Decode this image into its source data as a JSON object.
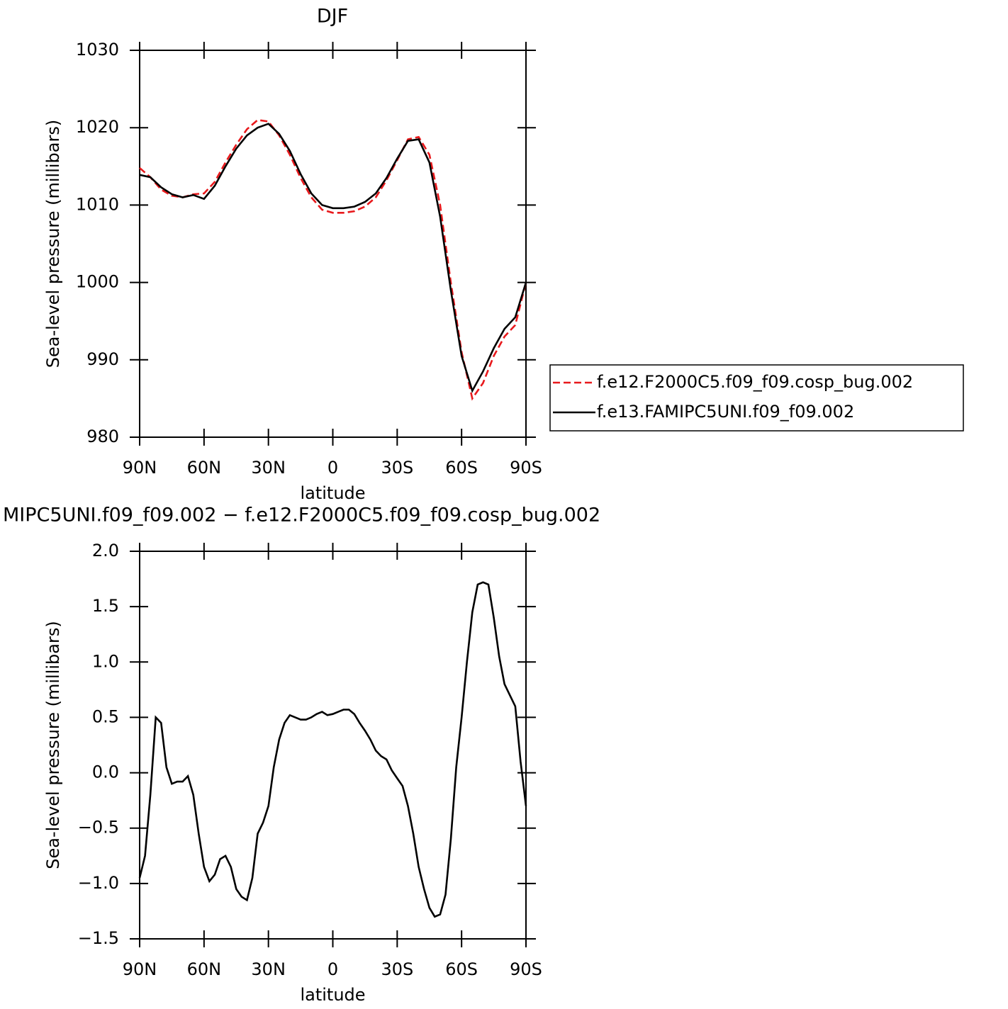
{
  "chart_data": [
    {
      "type": "line",
      "title": "DJF",
      "xlabel": "latitude",
      "ylabel": "Sea-level pressure (millibars)",
      "x": [
        90,
        85,
        80,
        75,
        70,
        65,
        60,
        55,
        50,
        45,
        40,
        35,
        30,
        25,
        20,
        15,
        10,
        5,
        0,
        -5,
        -10,
        -15,
        -20,
        -25,
        -30,
        -35,
        -40,
        -45,
        -50,
        -55,
        -60,
        -65,
        -70,
        -75,
        -80,
        -85,
        -90
      ],
      "series": [
        {
          "name": "f.e12.F2000C5.f09_f09.cosp_bug.002",
          "color": "#e8191c",
          "line_style": "dashed",
          "values": [
            1014.8,
            1013.6,
            1012.0,
            1011.2,
            1011.0,
            1011.4,
            1011.5,
            1013.0,
            1015.5,
            1017.8,
            1019.8,
            1021.0,
            1020.8,
            1019.0,
            1016.5,
            1013.5,
            1011.0,
            1009.4,
            1009.0,
            1009.0,
            1009.2,
            1009.8,
            1011.0,
            1013.2,
            1015.8,
            1018.5,
            1018.8,
            1016.5,
            1010.0,
            1000.0,
            991.0,
            985.0,
            987.0,
            990.5,
            993.0,
            994.5,
            1000.0
          ]
        },
        {
          "name": "f.e13.FAMIPC5UNI.f09_f09.002",
          "color": "#000000",
          "line_style": "solid",
          "values": [
            1013.9,
            1013.6,
            1012.3,
            1011.4,
            1011.0,
            1011.3,
            1010.8,
            1012.5,
            1015.0,
            1017.3,
            1019.0,
            1020.0,
            1020.5,
            1019.2,
            1017.0,
            1014.0,
            1011.5,
            1010.0,
            1009.6,
            1009.6,
            1009.8,
            1010.4,
            1011.5,
            1013.5,
            1016.0,
            1018.3,
            1018.5,
            1015.5,
            1008.5,
            999.0,
            990.5,
            986.0,
            988.5,
            991.5,
            994.0,
            995.5,
            1000.0
          ]
        }
      ],
      "xlim": [
        90,
        -90
      ],
      "xticks": [
        {
          "value": 90,
          "label": "90N"
        },
        {
          "value": 60,
          "label": "60N"
        },
        {
          "value": 30,
          "label": "30N"
        },
        0,
        {
          "value": -30,
          "label": "30S"
        },
        {
          "value": -60,
          "label": "60S"
        },
        {
          "value": -90,
          "label": "90S"
        }
      ],
      "ylim": [
        980,
        1030
      ],
      "yticks": [
        980,
        990,
        1000,
        1010,
        1020,
        1030
      ],
      "legend": "right"
    },
    {
      "type": "line",
      "title": "MIPC5UNI.f09_f09.002 − f.e12.F2000C5.f09_f09.cosp_bug.002",
      "xlabel": "latitude",
      "ylabel": "Sea-level pressure (millibars)",
      "x": [
        90,
        87.5,
        85,
        82.5,
        80,
        77.5,
        75,
        72.5,
        70,
        67.5,
        65,
        62.5,
        60,
        57.5,
        55,
        52.5,
        50,
        47.5,
        45,
        42.5,
        40,
        37.5,
        35,
        32.5,
        30,
        27.5,
        25,
        22.5,
        20,
        17.5,
        15,
        12.5,
        10,
        7.5,
        5,
        2.5,
        0,
        -2.5,
        -5,
        -7.5,
        -10,
        -12.5,
        -15,
        -17.5,
        -20,
        -22.5,
        -25,
        -27.5,
        -30,
        -32.5,
        -35,
        -37.5,
        -40,
        -42.5,
        -45,
        -47.5,
        -50,
        -52.5,
        -55,
        -57.5,
        -60,
        -62.5,
        -65,
        -67.5,
        -70,
        -72.5,
        -75,
        -77.5,
        -80,
        -82.5,
        -85,
        -87.5,
        -90
      ],
      "color": "#000000",
      "values": [
        -0.95,
        -0.75,
        -0.2,
        0.5,
        0.45,
        0.05,
        -0.1,
        -0.08,
        -0.08,
        -0.03,
        -0.2,
        -0.55,
        -0.85,
        -0.98,
        -0.92,
        -0.78,
        -0.75,
        -0.85,
        -1.05,
        -1.12,
        -1.15,
        -0.95,
        -0.55,
        -0.45,
        -0.3,
        0.05,
        0.3,
        0.45,
        0.52,
        0.5,
        0.48,
        0.48,
        0.5,
        0.53,
        0.55,
        0.52,
        0.53,
        0.55,
        0.57,
        0.57,
        0.53,
        0.45,
        0.38,
        0.3,
        0.2,
        0.15,
        0.12,
        0.02,
        -0.05,
        -0.12,
        -0.3,
        -0.55,
        -0.85,
        -1.05,
        -1.22,
        -1.3,
        -1.28,
        -1.1,
        -0.6,
        0.05,
        0.5,
        1.0,
        1.45,
        1.7,
        1.72,
        1.7,
        1.4,
        1.05,
        0.8,
        0.7,
        0.6,
        0.1,
        -0.3
      ],
      "xlim": [
        90,
        -90
      ],
      "xticks": [
        {
          "value": 90,
          "label": "90N"
        },
        {
          "value": 60,
          "label": "60N"
        },
        {
          "value": 30,
          "label": "30N"
        },
        0,
        {
          "value": -30,
          "label": "30S"
        },
        {
          "value": -60,
          "label": "60S"
        },
        {
          "value": -90,
          "label": "90S"
        }
      ],
      "ylim": [
        -1.5,
        2.0
      ],
      "yticks": [
        {
          "value": -1.5,
          "label": "−1.5"
        },
        {
          "value": -1.0,
          "label": "−1.0"
        },
        {
          "value": -0.5,
          "label": "−0.5"
        },
        {
          "value": 0,
          "label": "0.0"
        },
        0.5,
        {
          "value": 1.0,
          "label": "1.0"
        },
        1.5,
        {
          "value": 2.0,
          "label": "2.0"
        }
      ]
    }
  ]
}
